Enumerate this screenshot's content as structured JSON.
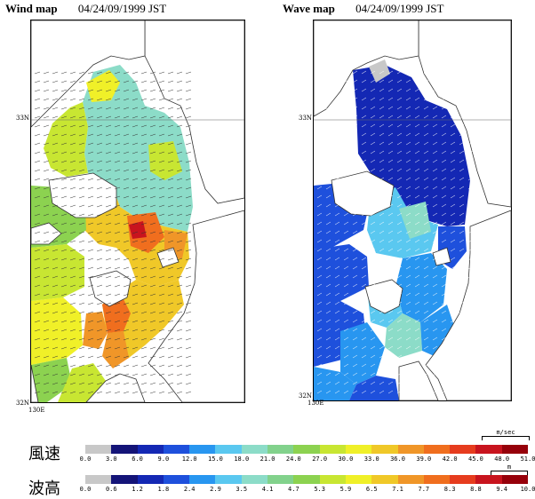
{
  "left_map": {
    "title_bold": "Wind map",
    "title_rest": "04/24/09/1999 JST",
    "lat_top": "33N",
    "lat_bottom": "32N",
    "lon": "130E"
  },
  "right_map": {
    "title_bold": "Wave map",
    "title_rest": "04/24/09/1999 JST",
    "lat_top": "33N",
    "lat_bottom": "32N",
    "lon": "130E"
  },
  "legend_wind": {
    "label": "風速",
    "unit": "m/sec",
    "ticks": [
      "0.0",
      "3.0",
      "6.0",
      "9.0",
      "12.0",
      "15.0",
      "18.0",
      "21.0",
      "24.0",
      "27.0",
      "30.0",
      "33.0",
      "36.0",
      "39.0",
      "42.0",
      "45.0",
      "48.0",
      "51.0"
    ],
    "colors": [
      "#c8c8c8",
      "#141478",
      "#1428b4",
      "#1e50dc",
      "#2896f0",
      "#5ac8f0",
      "#8cdcc8",
      "#82d28c",
      "#8cd250",
      "#c8e632",
      "#f0f028",
      "#f0c828",
      "#f09628",
      "#f06e1e",
      "#e63c1e",
      "#c8141e",
      "#96000a"
    ]
  },
  "legend_wave": {
    "label": "波高",
    "unit": "m",
    "ticks": [
      "0.0",
      "0.6",
      "1.2",
      "1.8",
      "2.4",
      "2.9",
      "3.5",
      "4.1",
      "4.7",
      "5.3",
      "5.9",
      "6.5",
      "7.1",
      "7.7",
      "8.3",
      "8.8",
      "9.4",
      "10.0"
    ],
    "colors": [
      "#c8c8c8",
      "#141478",
      "#1428b4",
      "#1e50dc",
      "#2896f0",
      "#5ac8f0",
      "#8cdcc8",
      "#82d28c",
      "#8cd250",
      "#c8e632",
      "#f0f028",
      "#f0c828",
      "#f09628",
      "#f06e1e",
      "#e63c1e",
      "#c8141e",
      "#96000a"
    ]
  }
}
